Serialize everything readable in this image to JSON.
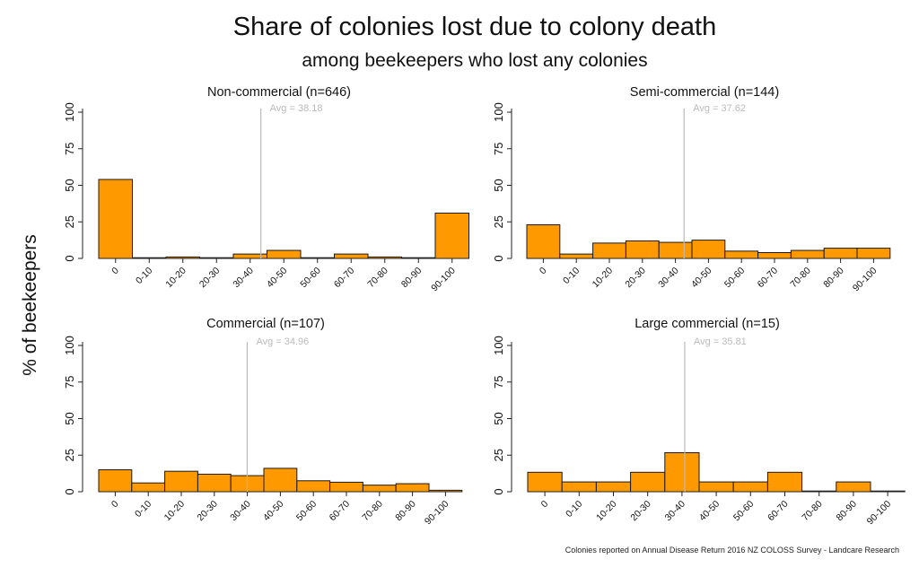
{
  "title": "Share of colonies lost due to colony death",
  "subtitle": "among beekeepers who lost any colonies",
  "ylabel": "% of beekeepers",
  "source_note": "Colonies reported on Annual Disease Return 2016 NZ COLOSS Survey - Landcare Research",
  "colors": {
    "bar_fill": "#FF9900",
    "bar_stroke": "#1a1a1a",
    "avg_line": "#bbbbbb",
    "avg_text": "#bbbbbb"
  },
  "chart_data": [
    {
      "type": "bar",
      "title": "Non-commercial (n=646)",
      "avg_label": "Avg = 38.18",
      "avg": 38.18,
      "categories": [
        "0",
        "0-10",
        "10-20",
        "20-30",
        "30-40",
        "40-50",
        "50-60",
        "60-70",
        "70-80",
        "80-90",
        "90-100"
      ],
      "values": [
        54,
        0,
        1,
        0.5,
        3,
        5.5,
        0.5,
        3,
        1,
        0.5,
        31
      ],
      "ylim": [
        0,
        100
      ],
      "yticks": [
        0,
        25,
        50,
        75,
        100
      ],
      "grid": false
    },
    {
      "type": "bar",
      "title": "Semi-commercial (n=144)",
      "avg_label": "Avg = 37.62",
      "avg": 37.62,
      "categories": [
        "0",
        "0-10",
        "10-20",
        "20-30",
        "30-40",
        "40-50",
        "50-60",
        "60-70",
        "70-80",
        "80-90",
        "90-100"
      ],
      "values": [
        23,
        3,
        10.5,
        12,
        11,
        12.5,
        5,
        4,
        5.5,
        7,
        7
      ],
      "ylim": [
        0,
        100
      ],
      "yticks": [
        0,
        25,
        50,
        75,
        100
      ],
      "grid": false
    },
    {
      "type": "bar",
      "title": "Commercial (n=107)",
      "avg_label": "Avg = 34.96",
      "avg": 34.96,
      "categories": [
        "0",
        "0-10",
        "10-20",
        "20-30",
        "30-40",
        "40-50",
        "50-60",
        "60-70",
        "70-80",
        "80-90",
        "90-100"
      ],
      "values": [
        15,
        6,
        14,
        12,
        11,
        16,
        7.5,
        6.5,
        4.5,
        5.5,
        1
      ],
      "ylim": [
        0,
        100
      ],
      "yticks": [
        0,
        25,
        50,
        75,
        100
      ],
      "grid": false
    },
    {
      "type": "bar",
      "title": "Large commercial (n=15)",
      "avg_label": "Avg = 35.81",
      "avg": 35.81,
      "categories": [
        "0",
        "0-10",
        "10-20",
        "20-30",
        "30-40",
        "40-50",
        "50-60",
        "60-70",
        "70-80",
        "80-90",
        "90-100"
      ],
      "values": [
        13.3,
        6.7,
        6.7,
        13.3,
        26.7,
        6.7,
        6.7,
        13.3,
        0,
        6.7,
        0
      ],
      "ylim": [
        0,
        100
      ],
      "yticks": [
        0,
        25,
        50,
        75,
        100
      ],
      "grid": false
    }
  ]
}
